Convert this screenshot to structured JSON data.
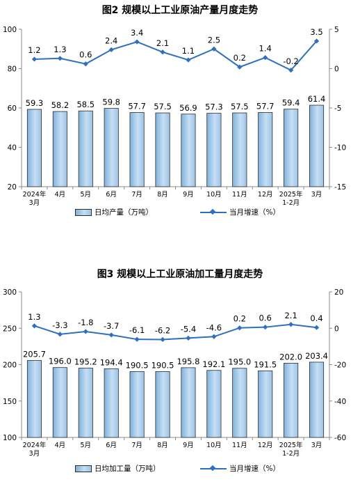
{
  "chart_data": [
    {
      "type": "bar+line",
      "title": "图2  规模以上工业原油产量月度走势",
      "categories": [
        "2024年\n3月",
        "4月",
        "5月",
        "6月",
        "7月",
        "8月",
        "9月",
        "10月",
        "11月",
        "12月",
        "2025年\n1-2月",
        "3月"
      ],
      "series": [
        {
          "name": "日均产量（万吨）",
          "type": "bar",
          "axis": "left",
          "values": [
            59.3,
            58.2,
            58.5,
            59.8,
            57.7,
            57.5,
            56.9,
            57.3,
            57.5,
            57.7,
            59.4,
            61.4
          ]
        },
        {
          "name": "当月增速（%）",
          "type": "line",
          "axis": "right",
          "values": [
            1.2,
            1.3,
            0.6,
            2.4,
            3.4,
            2.1,
            1.1,
            2.5,
            0.2,
            1.4,
            -0.2,
            3.5
          ]
        }
      ],
      "left_axis": {
        "min": 20,
        "max": 100,
        "ticks": [
          20,
          40,
          60,
          80,
          100
        ]
      },
      "right_axis": {
        "min": -15,
        "max": 5,
        "ticks": [
          -15,
          -10,
          -5,
          0,
          5
        ]
      },
      "value_labels": {
        "bar": [
          "59.3",
          "58.2",
          "58.5",
          "59.8",
          "57.7",
          "57.5",
          "56.9",
          "57.3",
          "57.5",
          "57.7",
          "59.4",
          "61.4"
        ],
        "line": [
          "1.2",
          "1.3",
          "0.6",
          "2.4",
          "3.4",
          "2.1",
          "1.1",
          "2.5",
          "0.2",
          "1.4",
          "-0.2",
          "3.5"
        ]
      },
      "legend_position": "bottom",
      "grid": false
    },
    {
      "type": "bar+line",
      "title": "图3  规模以上工业原油加工量月度走势",
      "categories": [
        "2024年\n3月",
        "4月",
        "5月",
        "6月",
        "7月",
        "8月",
        "9月",
        "10月",
        "11月",
        "12月",
        "2025年\n1-2月",
        "3月"
      ],
      "series": [
        {
          "name": "日均加工量（万吨）",
          "type": "bar",
          "axis": "left",
          "values": [
            205.7,
            196.0,
            195.2,
            194.4,
            190.5,
            190.5,
            195.8,
            192.1,
            195.0,
            191.5,
            202.0,
            203.4
          ]
        },
        {
          "name": "当月增速（%）",
          "type": "line",
          "axis": "right",
          "values": [
            1.3,
            -3.3,
            -1.8,
            -3.7,
            -6.1,
            -6.2,
            -5.4,
            -4.6,
            0.2,
            0.6,
            2.1,
            0.4
          ]
        }
      ],
      "left_axis": {
        "min": 100,
        "max": 300,
        "ticks": [
          100,
          150,
          200,
          250,
          300
        ]
      },
      "right_axis": {
        "min": -60,
        "max": 20,
        "ticks": [
          -60,
          -40,
          -20,
          0,
          20
        ]
      },
      "value_labels": {
        "bar": [
          "205.7",
          "196.0",
          "195.2",
          "194.4",
          "190.5",
          "190.5",
          "195.8",
          "192.1",
          "195.0",
          "191.5",
          "202.0",
          "203.4"
        ],
        "line": [
          "1.3",
          "-3.3",
          "-1.8",
          "-3.7",
          "-6.1",
          "-6.2",
          "-5.4",
          "-4.6",
          "0.2",
          "0.6",
          "2.1",
          "0.4"
        ]
      },
      "legend_position": "bottom",
      "grid": false
    }
  ],
  "colors": {
    "bar_fill_light": "#c6dff3",
    "bar_fill_dark": "#7fb2de",
    "bar_border": "#2b2b2b",
    "line": "#2e6fc0"
  }
}
